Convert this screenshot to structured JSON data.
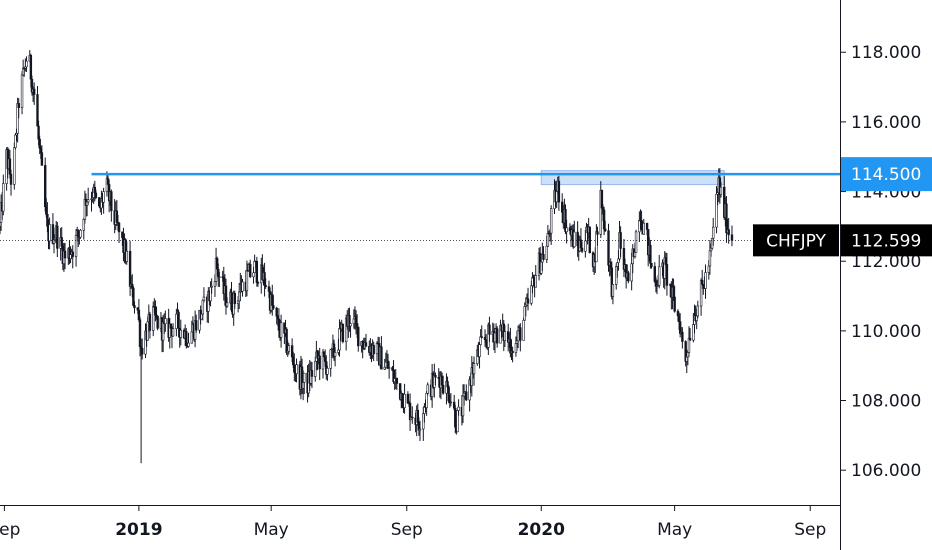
{
  "chart_data": {
    "type": "candlestick",
    "symbol": "CHFJPY",
    "last_price_label": "112.599",
    "last_price": 112.599,
    "resistance_label": "114.500",
    "resistance": 114.5,
    "resistance_start": "2018-11-19",
    "resistance_zone": {
      "x_start": "2020-01-01",
      "x_end": "2020-06-15",
      "y_low": 114.2,
      "y_high": 114.6
    },
    "ylim": [
      105.0,
      119.5
    ],
    "xlim": [
      "2018-08-28",
      "2020-09-28"
    ],
    "y_ticks": [
      {
        "value": 118,
        "label": "118.000"
      },
      {
        "value": 116,
        "label": "116.000"
      },
      {
        "value": 114,
        "label": "114.000"
      },
      {
        "value": 112,
        "label": "112.000"
      },
      {
        "value": 110,
        "label": "110.000"
      },
      {
        "value": 108,
        "label": "108.000"
      },
      {
        "value": 106,
        "label": "106.000"
      }
    ],
    "x_ticks": [
      {
        "date": "2018-09-01",
        "label": "Sep",
        "bold": false
      },
      {
        "date": "2019-01-01",
        "label": "2019",
        "bold": true
      },
      {
        "date": "2019-05-01",
        "label": "May",
        "bold": false
      },
      {
        "date": "2019-09-01",
        "label": "Sep",
        "bold": false
      },
      {
        "date": "2020-01-01",
        "label": "2020",
        "bold": true
      },
      {
        "date": "2020-05-01",
        "label": "May",
        "bold": false
      },
      {
        "date": "2020-09-01",
        "label": "Sep",
        "bold": false
      }
    ],
    "price_path": [
      [
        "2018-08-28",
        113.0
      ],
      [
        "2018-09-03",
        115.0
      ],
      [
        "2018-09-08",
        114.2
      ],
      [
        "2018-09-14",
        116.6
      ],
      [
        "2018-09-22",
        118.0
      ],
      [
        "2018-09-28",
        116.8
      ],
      [
        "2018-10-04",
        114.8
      ],
      [
        "2018-10-10",
        112.8
      ],
      [
        "2018-10-18",
        112.8
      ],
      [
        "2018-10-26",
        112.1
      ],
      [
        "2018-11-02",
        112.4
      ],
      [
        "2018-11-08",
        112.8
      ],
      [
        "2018-11-14",
        113.8
      ],
      [
        "2018-11-20",
        114.0
      ],
      [
        "2018-11-26",
        113.4
      ],
      [
        "2018-12-02",
        114.2
      ],
      [
        "2018-12-08",
        113.4
      ],
      [
        "2018-12-14",
        112.8
      ],
      [
        "2018-12-20",
        112.2
      ],
      [
        "2018-12-26",
        111.0
      ],
      [
        "2018-12-31",
        110.6
      ],
      [
        "2019-01-03",
        109.5
      ],
      [
        "2019-01-08",
        110.0
      ],
      [
        "2019-01-14",
        110.4
      ],
      [
        "2019-01-24",
        110.0
      ],
      [
        "2019-02-05",
        110.2
      ],
      [
        "2019-02-15",
        109.8
      ],
      [
        "2019-02-25",
        110.4
      ],
      [
        "2019-03-06",
        111.0
      ],
      [
        "2019-03-12",
        111.9
      ],
      [
        "2019-03-20",
        111.0
      ],
      [
        "2019-03-28",
        110.8
      ],
      [
        "2019-04-06",
        111.4
      ],
      [
        "2019-04-16",
        111.8
      ],
      [
        "2019-04-26",
        111.4
      ],
      [
        "2019-05-06",
        110.2
      ],
      [
        "2019-05-14",
        109.7
      ],
      [
        "2019-05-24",
        108.8
      ],
      [
        "2019-06-02",
        108.4
      ],
      [
        "2019-06-12",
        109.2
      ],
      [
        "2019-06-22",
        109.0
      ],
      [
        "2019-07-02",
        109.8
      ],
      [
        "2019-07-12",
        110.4
      ],
      [
        "2019-07-22",
        109.7
      ],
      [
        "2019-08-02",
        109.5
      ],
      [
        "2019-08-14",
        109.0
      ],
      [
        "2019-08-26",
        108.3
      ],
      [
        "2019-09-02",
        107.8
      ],
      [
        "2019-09-12",
        107.4
      ],
      [
        "2019-09-22",
        108.4
      ],
      [
        "2019-10-01",
        108.7
      ],
      [
        "2019-10-10",
        108.2
      ],
      [
        "2019-10-16",
        107.4
      ],
      [
        "2019-10-22",
        107.8
      ],
      [
        "2019-10-30",
        108.8
      ],
      [
        "2019-11-08",
        109.6
      ],
      [
        "2019-11-18",
        110.0
      ],
      [
        "2019-11-28",
        109.9
      ],
      [
        "2019-12-08",
        109.5
      ],
      [
        "2019-12-18",
        110.5
      ],
      [
        "2019-12-28",
        111.8
      ],
      [
        "2020-01-06",
        112.4
      ],
      [
        "2020-01-12",
        113.6
      ],
      [
        "2020-01-16",
        114.1
      ],
      [
        "2020-01-24",
        113.0
      ],
      [
        "2020-02-03",
        112.4
      ],
      [
        "2020-02-12",
        112.8
      ],
      [
        "2020-02-18",
        112.0
      ],
      [
        "2020-02-24",
        113.9
      ],
      [
        "2020-03-01",
        112.4
      ],
      [
        "2020-03-07",
        110.8
      ],
      [
        "2020-03-12",
        112.6
      ],
      [
        "2020-03-20",
        111.2
      ],
      [
        "2020-03-30",
        113.5
      ],
      [
        "2020-04-06",
        112.6
      ],
      [
        "2020-04-12",
        111.4
      ],
      [
        "2020-04-22",
        111.8
      ],
      [
        "2020-04-30",
        110.8
      ],
      [
        "2020-05-06",
        110.2
      ],
      [
        "2020-05-10",
        109.0
      ],
      [
        "2020-05-16",
        110.2
      ],
      [
        "2020-05-22",
        110.8
      ],
      [
        "2020-05-28",
        111.4
      ],
      [
        "2020-06-03",
        112.2
      ],
      [
        "2020-06-08",
        113.8
      ],
      [
        "2020-06-10",
        114.2
      ],
      [
        "2020-06-14",
        113.6
      ],
      [
        "2020-06-18",
        113.0
      ],
      [
        "2020-06-22",
        112.6
      ]
    ],
    "spikes": [
      {
        "date": "2019-01-03",
        "low": 106.2
      }
    ]
  }
}
